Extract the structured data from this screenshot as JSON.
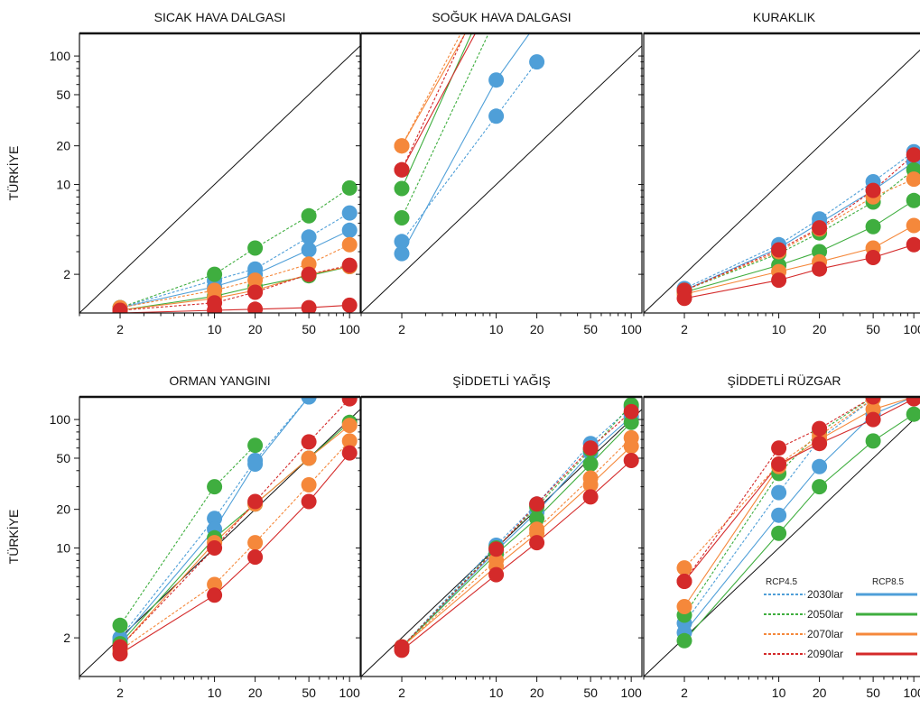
{
  "chart_data": {
    "type": "line",
    "xscale": "log",
    "yscale": "log",
    "x": [
      2,
      10,
      20,
      50,
      100
    ],
    "xlim": [
      1,
      120
    ],
    "ylim": [
      1,
      150
    ],
    "x_tick_labels": [
      "2",
      "10",
      "20",
      "50",
      "100"
    ],
    "y_tick_labels": [
      "2",
      "10",
      "20",
      "50",
      "100"
    ],
    "ylabel": "TÜRKİYE",
    "colors": {
      "2030lar": "#4f9fd8",
      "2050lar": "#3fae3f",
      "2070lar": "#f5883b",
      "2090lar": "#d42a2a"
    },
    "legend": {
      "placement": "bottom-right of last panel",
      "scenario_labels": [
        "RCP4.5",
        "RCP8.5"
      ],
      "entries": [
        "2030lar",
        "2050lar",
        "2070lar",
        "2090lar"
      ]
    },
    "panels": [
      {
        "title": "SICAK HAVA DALGASI",
        "series": [
          {
            "period": "2030lar",
            "scenario": "RCP4.5",
            "y": [
              1.1,
              1.8,
              2.2,
              3.9,
              6.0
            ]
          },
          {
            "period": "2030lar",
            "scenario": "RCP8.5",
            "y": [
              1.1,
              1.6,
              2.0,
              3.1,
              4.4
            ]
          },
          {
            "period": "2050lar",
            "scenario": "RCP4.5",
            "y": [
              1.1,
              2.0,
              3.2,
              5.7,
              9.4
            ]
          },
          {
            "period": "2050lar",
            "scenario": "RCP8.5",
            "y": [
              1.05,
              1.35,
              1.6,
              1.95,
              2.3
            ]
          },
          {
            "period": "2070lar",
            "scenario": "RCP4.5",
            "y": [
              1.1,
              1.5,
              1.8,
              2.4,
              3.4
            ]
          },
          {
            "period": "2070lar",
            "scenario": "RCP8.5",
            "y": [
              1.05,
              1.3,
              1.5,
              2.0,
              2.3
            ]
          },
          {
            "period": "2090lar",
            "scenario": "RCP4.5",
            "y": [
              1.05,
              1.2,
              1.45,
              2.0,
              2.35
            ]
          },
          {
            "period": "2090lar",
            "scenario": "RCP8.5",
            "y": [
              1.0,
              1.05,
              1.07,
              1.1,
              1.15
            ]
          }
        ]
      },
      {
        "title": "SOĞUK HAVA DALGASI",
        "series": [
          {
            "period": "2030lar",
            "scenario": "RCP4.5",
            "y": [
              3.6,
              34,
              90,
              null,
              null
            ]
          },
          {
            "period": "2030lar",
            "scenario": "RCP8.5",
            "y": [
              2.9,
              65,
              180,
              null,
              null
            ]
          },
          {
            "period": "2050lar",
            "scenario": "RCP4.5",
            "y": [
              5.5,
              200,
              null,
              null,
              null
            ]
          },
          {
            "period": "2050lar",
            "scenario": "RCP8.5",
            "y": [
              9.3,
              400,
              null,
              null,
              null
            ]
          },
          {
            "period": "2070lar",
            "scenario": "RCP4.5",
            "y": [
              20,
              500,
              null,
              null,
              null
            ]
          },
          {
            "period": "2070lar",
            "scenario": "RCP8.5",
            "y": [
              20,
              400,
              null,
              null,
              null
            ]
          },
          {
            "period": "2090lar",
            "scenario": "RCP4.5",
            "y": [
              13,
              500,
              null,
              null,
              null
            ]
          },
          {
            "period": "2090lar",
            "scenario": "RCP8.5",
            "y": [
              13,
              300,
              null,
              null,
              null
            ]
          }
        ]
      },
      {
        "title": "KURAKLIK",
        "series": [
          {
            "period": "2030lar",
            "scenario": "RCP4.5",
            "y": [
              1.55,
              3.4,
              5.4,
              10.5,
              18
            ]
          },
          {
            "period": "2030lar",
            "scenario": "RCP8.5",
            "y": [
              1.5,
              3.2,
              5.0,
              9.0,
              15
            ]
          },
          {
            "period": "2050lar",
            "scenario": "RCP4.5",
            "y": [
              1.5,
              2.9,
              4.2,
              7.3,
              13
            ]
          },
          {
            "period": "2050lar",
            "scenario": "RCP8.5",
            "y": [
              1.45,
              2.35,
              3.0,
              4.7,
              7.5
            ]
          },
          {
            "period": "2070lar",
            "scenario": "RCP4.5",
            "y": [
              1.5,
              3.0,
              4.5,
              8.0,
              11
            ]
          },
          {
            "period": "2070lar",
            "scenario": "RCP8.5",
            "y": [
              1.4,
              2.1,
              2.5,
              3.2,
              4.8
            ]
          },
          {
            "period": "2090lar",
            "scenario": "RCP4.5",
            "y": [
              1.5,
              3.1,
              4.6,
              9.0,
              17
            ]
          },
          {
            "period": "2090lar",
            "scenario": "RCP8.5",
            "y": [
              1.3,
              1.8,
              2.2,
              2.7,
              3.4
            ]
          }
        ]
      },
      {
        "title": "ORMAN YANGINI",
        "series": [
          {
            "period": "2030lar",
            "scenario": "RCP4.5",
            "y": [
              2.0,
              17,
              48,
              150,
              null
            ]
          },
          {
            "period": "2030lar",
            "scenario": "RCP8.5",
            "y": [
              1.9,
              14,
              45,
              150,
              null
            ]
          },
          {
            "period": "2050lar",
            "scenario": "RCP4.5",
            "y": [
              2.5,
              30,
              63,
              null,
              null
            ]
          },
          {
            "period": "2050lar",
            "scenario": "RCP8.5",
            "y": [
              1.8,
              12,
              22,
              50,
              95
            ]
          },
          {
            "period": "2070lar",
            "scenario": "RCP4.5",
            "y": [
              1.6,
              5.2,
              11,
              31,
              68
            ]
          },
          {
            "period": "2070lar",
            "scenario": "RCP8.5",
            "y": [
              1.7,
              11,
              22,
              50,
              90
            ]
          },
          {
            "period": "2090lar",
            "scenario": "RCP4.5",
            "y": [
              1.7,
              10,
              23,
              67,
              145
            ]
          },
          {
            "period": "2090lar",
            "scenario": "RCP8.5",
            "y": [
              1.5,
              4.3,
              8.5,
              23,
              55
            ]
          }
        ]
      },
      {
        "title": "ŞİDDETLİ YAĞIŞ",
        "series": [
          {
            "period": "2030lar",
            "scenario": "RCP4.5",
            "y": [
              1.7,
              10.5,
              22,
              65,
              125
            ]
          },
          {
            "period": "2030lar",
            "scenario": "RCP8.5",
            "y": [
              1.7,
              9.5,
              19,
              55,
              105
            ]
          },
          {
            "period": "2050lar",
            "scenario": "RCP4.5",
            "y": [
              1.7,
              10,
              21,
              58,
              130
            ]
          },
          {
            "period": "2050lar",
            "scenario": "RCP8.5",
            "y": [
              1.7,
              9,
              17,
              45,
              95
            ]
          },
          {
            "period": "2070lar",
            "scenario": "RCP4.5",
            "y": [
              1.7,
              8,
              14,
              35,
              72
            ]
          },
          {
            "period": "2070lar",
            "scenario": "RCP8.5",
            "y": [
              1.7,
              7.2,
              13,
              31,
              62
            ]
          },
          {
            "period": "2090lar",
            "scenario": "RCP4.5",
            "y": [
              1.7,
              9.8,
              22,
              60,
              115
            ]
          },
          {
            "period": "2090lar",
            "scenario": "RCP8.5",
            "y": [
              1.6,
              6.2,
              11,
              25,
              48
            ]
          }
        ]
      },
      {
        "title": "ŞİDDETLİ RÜZGAR",
        "series": [
          {
            "period": "2030lar",
            "scenario": "RCP4.5",
            "y": [
              2.6,
              27,
              70,
              145,
              null
            ]
          },
          {
            "period": "2030lar",
            "scenario": "RCP8.5",
            "y": [
              2.2,
              18,
              43,
              110,
              150
            ]
          },
          {
            "period": "2050lar",
            "scenario": "RCP4.5",
            "y": [
              3.0,
              38,
              80,
              150,
              null
            ]
          },
          {
            "period": "2050lar",
            "scenario": "RCP8.5",
            "y": [
              1.9,
              13,
              30,
              68,
              110
            ]
          },
          {
            "period": "2070lar",
            "scenario": "RCP4.5",
            "y": [
              7.0,
              45,
              75,
              145,
              null
            ]
          },
          {
            "period": "2070lar",
            "scenario": "RCP8.5",
            "y": [
              3.5,
              43,
              70,
              120,
              150
            ]
          },
          {
            "period": "2090lar",
            "scenario": "RCP4.5",
            "y": [
              5.5,
              60,
              85,
              150,
              null
            ]
          },
          {
            "period": "2090lar",
            "scenario": "RCP8.5",
            "y": [
              5.5,
              45,
              65,
              100,
              145
            ]
          }
        ]
      }
    ]
  }
}
